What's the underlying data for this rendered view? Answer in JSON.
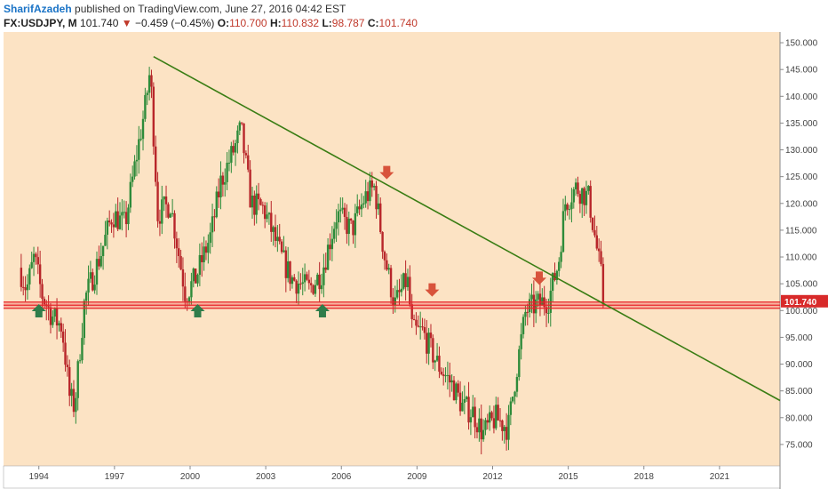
{
  "header": {
    "author": "SharifAzadeh",
    "published_text": "published on TradingView.com, June 27, 2016 04:42 EST",
    "symbol": "FX:USDJPY, M",
    "last": "101.740",
    "change": "−0.459 (−0.45%)",
    "open_label": "O:",
    "open": "110.700",
    "high_label": "H:",
    "high": "110.832",
    "low_label": "L:",
    "low": "98.787",
    "close_label": "C:",
    "close": "101.740"
  },
  "colors": {
    "background": "#fce3c4",
    "up_candle": "#2e8b3a",
    "down_candle": "#b8262a",
    "trendline": "#3a7d14",
    "support": "#e8272c",
    "price_tag": "#d82a2a",
    "up_arrow": "#2f7d4a",
    "down_arrow": "#d8533b"
  },
  "chart_data": {
    "type": "candlestick",
    "symbol": "FX:USDJPY",
    "interval": "M",
    "ylim": [
      71,
      152
    ],
    "xlim": [
      1992.6,
      2023.4
    ],
    "y_ticks": [
      "150.000",
      "145.000",
      "140.000",
      "135.000",
      "130.000",
      "125.000",
      "120.000",
      "115.000",
      "110.000",
      "105.000",
      "100.000",
      "95.000",
      "90.000",
      "85.000",
      "80.000",
      "75.000"
    ],
    "y_tick_values": [
      150,
      145,
      140,
      135,
      130,
      125,
      120,
      115,
      110,
      105,
      100,
      95,
      90,
      85,
      80,
      75
    ],
    "x_ticks": [
      "1994",
      "1997",
      "2000",
      "2003",
      "2006",
      "2009",
      "2012",
      "2015",
      "2018",
      "2021"
    ],
    "x_tick_values": [
      1994,
      1997,
      2000,
      2003,
      2006,
      2009,
      2012,
      2015,
      2018,
      2021
    ],
    "price_path": [
      [
        1993.3,
        108
      ],
      [
        1993.6,
        104
      ],
      [
        1993.9,
        110
      ],
      [
        1994.2,
        103
      ],
      [
        1994.6,
        99
      ],
      [
        1995.0,
        97
      ],
      [
        1995.3,
        84
      ],
      [
        1995.5,
        82
      ],
      [
        1995.9,
        102
      ],
      [
        1996.5,
        110
      ],
      [
        1997.0,
        118
      ],
      [
        1997.5,
        116
      ],
      [
        1998.0,
        130
      ],
      [
        1998.3,
        138
      ],
      [
        1998.5,
        145
      ],
      [
        1998.8,
        118
      ],
      [
        1999.3,
        120
      ],
      [
        1999.9,
        103
      ],
      [
        2000.3,
        106
      ],
      [
        2000.9,
        114
      ],
      [
        2001.3,
        124
      ],
      [
        2001.9,
        131
      ],
      [
        2002.1,
        134
      ],
      [
        2002.5,
        120
      ],
      [
        2003.0,
        119
      ],
      [
        2003.7,
        110
      ],
      [
        2004.1,
        106
      ],
      [
        2004.8,
        104
      ],
      [
        2005.3,
        107
      ],
      [
        2005.9,
        118
      ],
      [
        2006.5,
        115
      ],
      [
        2007.0,
        121
      ],
      [
        2007.4,
        123
      ],
      [
        2007.8,
        110
      ],
      [
        2008.2,
        101
      ],
      [
        2008.7,
        106
      ],
      [
        2008.9,
        96
      ],
      [
        2009.3,
        96
      ],
      [
        2009.9,
        90
      ],
      [
        2010.5,
        86
      ],
      [
        2010.9,
        82
      ],
      [
        2011.3,
        81
      ],
      [
        2011.7,
        77
      ],
      [
        2012.2,
        80
      ],
      [
        2012.7,
        78
      ],
      [
        2013.0,
        88
      ],
      [
        2013.4,
        100
      ],
      [
        2013.8,
        101
      ],
      [
        2014.3,
        102
      ],
      [
        2014.7,
        109
      ],
      [
        2014.95,
        120
      ],
      [
        2015.4,
        123
      ],
      [
        2015.9,
        121
      ],
      [
        2016.1,
        115
      ],
      [
        2016.4,
        106
      ],
      [
        2016.45,
        101.74
      ]
    ],
    "trendline": {
      "start": [
        1998.55,
        147.4
      ],
      "end": [
        2023.4,
        83.2
      ]
    },
    "support_level": 101.0,
    "last_price_label": "101.740",
    "last_price": 101.74,
    "up_arrows": [
      [
        1994.0,
        101.2
      ],
      [
        2000.3,
        101.2
      ],
      [
        2005.25,
        101.2
      ]
    ],
    "down_arrows": [
      [
        2007.8,
        124.5
      ],
      [
        2009.6,
        102.6
      ],
      [
        2013.85,
        104.8
      ]
    ]
  }
}
